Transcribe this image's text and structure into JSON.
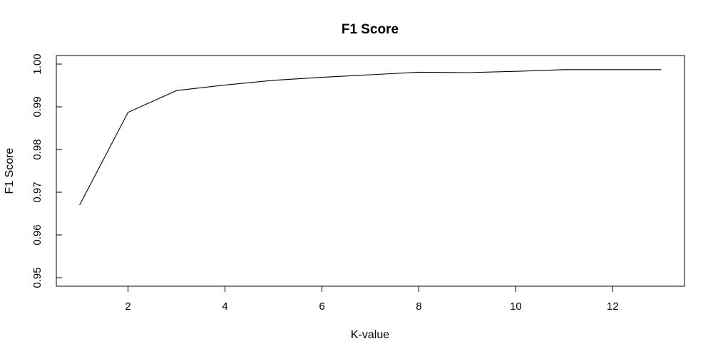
{
  "chart_data": {
    "type": "line",
    "title": "F1 Score",
    "xlabel": "K-value",
    "ylabel": "F1 Score",
    "x": [
      1,
      2,
      3,
      4,
      5,
      6,
      7,
      8,
      9,
      10,
      11,
      12,
      13
    ],
    "series": [
      {
        "values": [
          0.967,
          0.9887,
          0.9938,
          0.9951,
          0.9962,
          0.9969,
          0.9975,
          0.9981,
          0.998,
          0.9983,
          0.9987,
          0.9987,
          0.9987
        ],
        "color": "#000000"
      }
    ],
    "x_ticks": [
      2,
      4,
      6,
      8,
      10,
      12
    ],
    "x_tick_labels": [
      "2",
      "4",
      "6",
      "8",
      "10",
      "12"
    ],
    "y_ticks": [
      0.95,
      0.96,
      0.97,
      0.98,
      0.99,
      1.0
    ],
    "y_tick_labels": [
      "0.95",
      "0.96",
      "0.97",
      "0.98",
      "0.99",
      "1.00"
    ],
    "xlim": [
      0.52,
      13.48
    ],
    "ylim": [
      0.948,
      1.002
    ],
    "grid": false,
    "legend": false
  }
}
